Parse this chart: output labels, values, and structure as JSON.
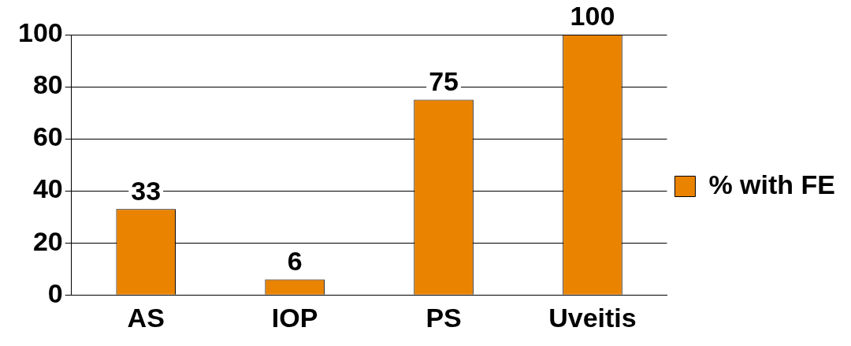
{
  "chart_data": {
    "type": "bar",
    "categories": [
      "AS",
      "IOP",
      "PS",
      "Uveitis"
    ],
    "series": [
      {
        "name": "% with FE",
        "color": "#e98300",
        "values": [
          33,
          6,
          75,
          100
        ]
      }
    ],
    "ylim": [
      0,
      100
    ],
    "yticks": [
      0,
      20,
      40,
      60,
      80,
      100
    ],
    "grid": "y",
    "legend": "right",
    "data_labels": true
  }
}
